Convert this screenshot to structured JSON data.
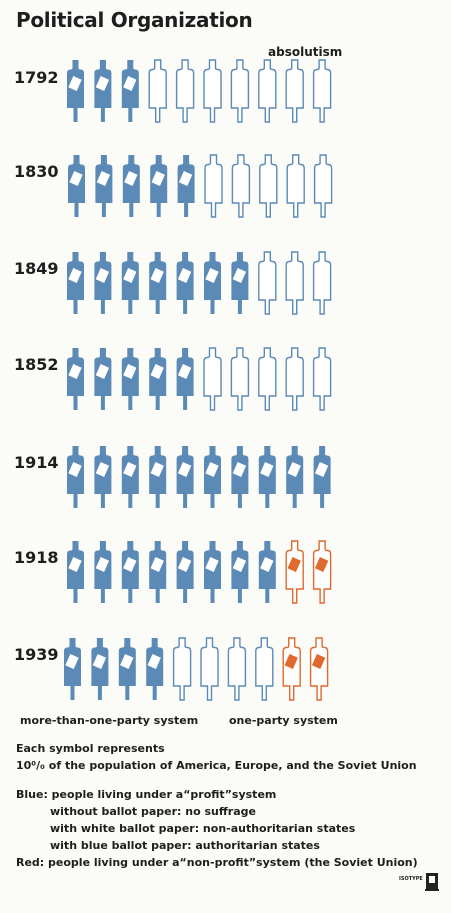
{
  "title": "Political Organization",
  "column_label": "absolutism",
  "chart_data": {
    "type": "pictogram",
    "unit": "Each symbol represents 10% of the population of America, Europe, and the Soviet Union",
    "symbols_per_row": 10,
    "categories": [
      "1792",
      "1830",
      "1849",
      "1852",
      "1914",
      "1918",
      "1939"
    ],
    "series": [
      {
        "name": "with white ballot paper: non-authoritarian states",
        "values": [
          3,
          5,
          7,
          5,
          10,
          8,
          4
        ]
      },
      {
        "name": "without ballot paper: no suffrage",
        "values": [
          7,
          5,
          3,
          5,
          0,
          0,
          4
        ]
      },
      {
        "name": "people living under a \"non-profit\" system (the Soviet Union)",
        "values": [
          0,
          0,
          0,
          0,
          0,
          2,
          2
        ]
      }
    ],
    "colors": {
      "blue": "#5b8ab7",
      "red": "#e0692e",
      "white": "#ffffff"
    }
  },
  "system_labels": {
    "multi_party": "more-than-one-party system",
    "one_party": "one-party system"
  },
  "legend": {
    "symbol_line1": "Each symbol represents",
    "symbol_line2": "10⁰/₀ of the population of America, Europe, and the Soviet Union",
    "blue_head": "Blue: people living under a“profit”system",
    "blue_sub1": "without ballot paper: no suffrage",
    "blue_sub2": "with white ballot paper: non-authoritarian states",
    "blue_sub3": "with blue ballot paper: authoritarian states",
    "red_head": "Red: people living under a“non-profit”system (the Soviet Union)"
  },
  "mark": "ISOTYPE"
}
